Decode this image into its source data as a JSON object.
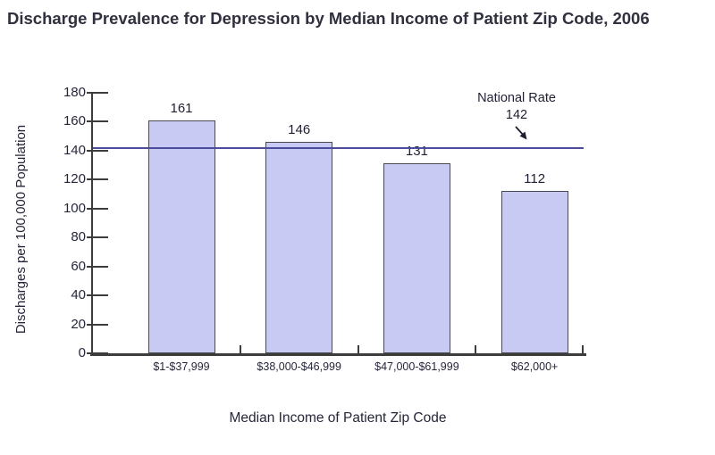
{
  "title": "Discharge Prevalence for Depression by Median Income of Patient Zip Code, 2006",
  "chart_data": {
    "type": "bar",
    "title": "Discharge Prevalence for Depression by Median Income of Patient Zip Code, 2006",
    "categories": [
      "$1-$37,999",
      "$38,000-$46,999",
      "$47,000-$61,999",
      "$62,000+"
    ],
    "values": [
      161,
      146,
      131,
      112
    ],
    "xlabel": "Median Income of Patient Zip Code",
    "ylabel": "Discharges per 100,000 Population",
    "ylim": [
      0,
      180
    ],
    "ytick_step": 20,
    "grid": false,
    "bar_value_labels_shown": true,
    "reference_line": {
      "label": "National Rate",
      "value": 142
    },
    "colors": {
      "bar_fill": "#c9caf4",
      "bar_border": "#4a4a52",
      "reference_line": "#4c4c9d",
      "axis": "#3c3c3c",
      "text": "#26263a",
      "title_text": "#30303f"
    }
  }
}
